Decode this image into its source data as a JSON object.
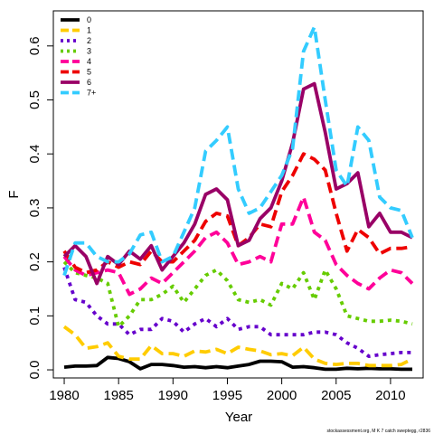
{
  "chart_data": {
    "type": "line",
    "title": "",
    "xlabel": "Year",
    "ylabel": "F",
    "xlim": [
      1979,
      2013
    ],
    "ylim": [
      -0.015,
      0.665
    ],
    "x_ticks": [
      1980,
      1985,
      1990,
      1995,
      2000,
      2005,
      2010
    ],
    "y_ticks": [
      0.0,
      0.1,
      0.2,
      0.3,
      0.4,
      0.5,
      0.6
    ],
    "y_tick_labels": [
      "0.0",
      "0.1",
      "0.2",
      "0.3",
      "0.4",
      "0.5",
      "0.6"
    ],
    "grid": false,
    "legend_position": "top-left",
    "x": [
      1980,
      1981,
      1982,
      1983,
      1984,
      1985,
      1986,
      1987,
      1988,
      1989,
      1990,
      1991,
      1992,
      1993,
      1994,
      1995,
      1996,
      1997,
      1998,
      1999,
      2000,
      2001,
      2002,
      2003,
      2004,
      2005,
      2006,
      2007,
      2008,
      2009,
      2010,
      2011,
      2012
    ],
    "series": [
      {
        "name": "0",
        "color": "#000000",
        "dash": "solid",
        "values": [
          0.005,
          0.007,
          0.007,
          0.008,
          0.023,
          0.021,
          0.015,
          0.002,
          0.01,
          0.01,
          0.008,
          0.005,
          0.006,
          0.004,
          0.006,
          0.004,
          0.007,
          0.01,
          0.016,
          0.016,
          0.015,
          0.005,
          0.006,
          0.004,
          0.001,
          0.001,
          0.003,
          0.002,
          0.003,
          0.002,
          0.002,
          0.001,
          0.001
        ]
      },
      {
        "name": "1",
        "color": "#FFCC00",
        "dash": "dash",
        "values": [
          0.08,
          0.065,
          0.04,
          0.043,
          0.05,
          0.025,
          0.02,
          0.02,
          0.045,
          0.03,
          0.03,
          0.025,
          0.035,
          0.033,
          0.038,
          0.03,
          0.042,
          0.038,
          0.035,
          0.028,
          0.03,
          0.026,
          0.042,
          0.02,
          0.012,
          0.01,
          0.012,
          0.012,
          0.008,
          0.008,
          0.008,
          0.01,
          0.02
        ]
      },
      {
        "name": "2",
        "color": "#6600CC",
        "dash": "dot",
        "values": [
          0.19,
          0.13,
          0.125,
          0.1,
          0.085,
          0.085,
          0.065,
          0.075,
          0.075,
          0.095,
          0.09,
          0.07,
          0.085,
          0.095,
          0.08,
          0.095,
          0.075,
          0.08,
          0.08,
          0.065,
          0.065,
          0.065,
          0.065,
          0.07,
          0.07,
          0.065,
          0.05,
          0.04,
          0.025,
          0.028,
          0.03,
          0.032,
          0.032
        ]
      },
      {
        "name": "3",
        "color": "#66CC00",
        "dash": "dot",
        "values": [
          0.2,
          0.18,
          0.175,
          0.17,
          0.16,
          0.08,
          0.1,
          0.13,
          0.13,
          0.14,
          0.155,
          0.125,
          0.15,
          0.175,
          0.185,
          0.165,
          0.13,
          0.125,
          0.13,
          0.12,
          0.16,
          0.15,
          0.18,
          0.13,
          0.185,
          0.15,
          0.1,
          0.095,
          0.09,
          0.09,
          0.092,
          0.09,
          0.085
        ]
      },
      {
        "name": "4",
        "color": "#FF0099",
        "dash": "dash",
        "values": [
          0.21,
          0.185,
          0.175,
          0.18,
          0.185,
          0.18,
          0.14,
          0.15,
          0.17,
          0.16,
          0.18,
          0.2,
          0.22,
          0.245,
          0.255,
          0.235,
          0.195,
          0.2,
          0.21,
          0.2,
          0.27,
          0.27,
          0.32,
          0.255,
          0.24,
          0.195,
          0.175,
          0.16,
          0.15,
          0.17,
          0.185,
          0.18,
          0.16
        ]
      },
      {
        "name": "5",
        "color": "#EE0000",
        "dash": "dash",
        "values": [
          0.22,
          0.19,
          0.18,
          0.185,
          0.2,
          0.19,
          0.2,
          0.195,
          0.22,
          0.2,
          0.2,
          0.22,
          0.24,
          0.275,
          0.29,
          0.285,
          0.23,
          0.245,
          0.27,
          0.265,
          0.33,
          0.36,
          0.4,
          0.39,
          0.37,
          0.29,
          0.22,
          0.26,
          0.245,
          0.215,
          0.225,
          0.225,
          0.228
        ]
      },
      {
        "name": "6",
        "color": "#990066",
        "dash": "solid",
        "values": [
          0.21,
          0.23,
          0.21,
          0.16,
          0.21,
          0.195,
          0.22,
          0.205,
          0.23,
          0.185,
          0.21,
          0.235,
          0.27,
          0.325,
          0.335,
          0.315,
          0.23,
          0.24,
          0.28,
          0.3,
          0.35,
          0.42,
          0.52,
          0.53,
          0.44,
          0.335,
          0.345,
          0.365,
          0.265,
          0.29,
          0.255,
          0.255,
          0.245
        ]
      },
      {
        "name": "7+",
        "color": "#33CCFF",
        "dash": "dash",
        "values": [
          0.175,
          0.235,
          0.235,
          0.21,
          0.2,
          0.2,
          0.215,
          0.25,
          0.255,
          0.2,
          0.21,
          0.255,
          0.3,
          0.405,
          0.425,
          0.45,
          0.335,
          0.29,
          0.3,
          0.33,
          0.36,
          0.41,
          0.59,
          0.635,
          0.5,
          0.37,
          0.34,
          0.45,
          0.425,
          0.32,
          0.3,
          0.295,
          0.245
        ]
      }
    ]
  },
  "credit": "stockassessment.org, M K 7 catch sweptegg, r2836"
}
